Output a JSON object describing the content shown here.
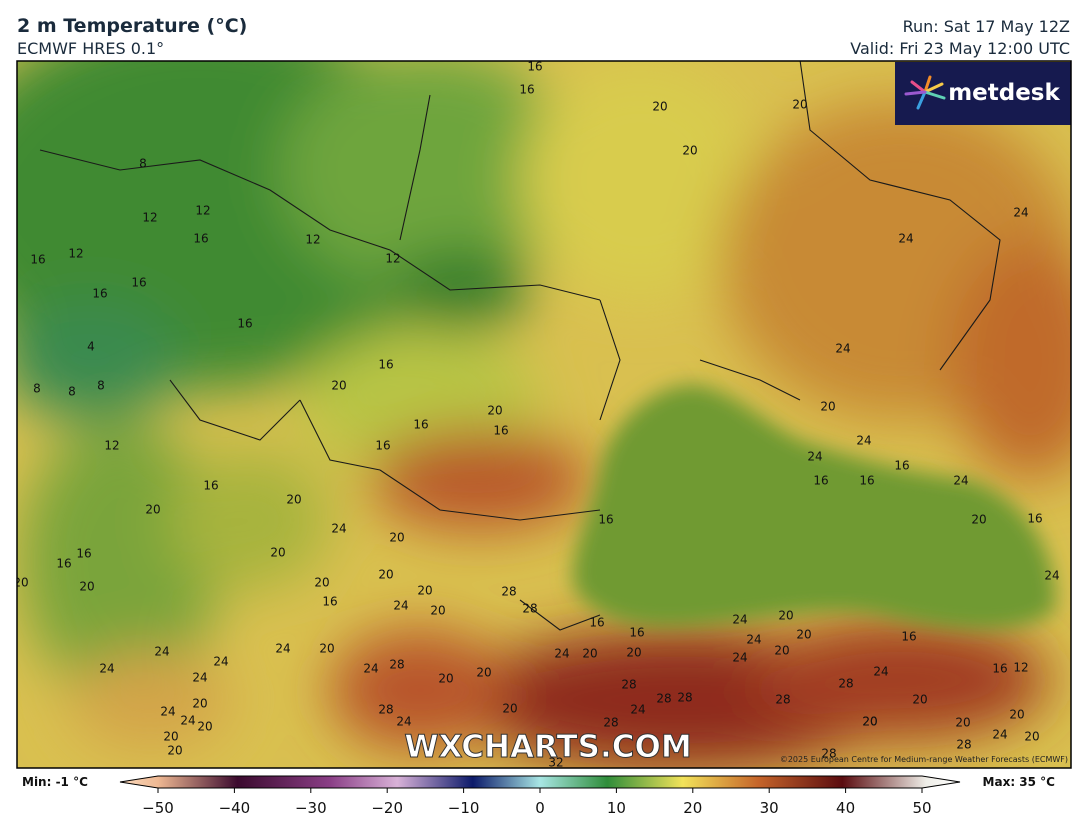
{
  "header": {
    "title": "2 m Temperature (°C)",
    "subtitle": "ECMWF HRES 0.1°",
    "run": "Run: Sat 17 May 12Z",
    "valid": "Valid: Fri 23 May 12:00 UTC"
  },
  "map": {
    "logo": "metdesk",
    "watermark": "WXCHARTS.COM",
    "copyright": "©2025 European Centre for Medium-range Weather Forecasts (ECMWF)",
    "contour_labels": [
      16,
      16,
      20,
      20,
      20,
      8,
      12,
      12,
      16,
      12,
      16,
      12,
      12,
      24,
      24,
      16,
      16,
      16,
      4,
      24,
      16,
      20,
      8,
      8,
      8,
      20,
      20,
      16,
      16,
      16,
      24,
      12,
      24,
      16,
      16,
      16,
      24,
      16,
      20,
      20,
      24,
      16,
      20,
      16,
      20,
      16,
      16,
      24,
      20,
      20,
      20,
      20,
      20,
      28,
      20,
      28,
      16,
      24,
      20,
      20,
      16,
      16,
      24,
      20,
      24,
      16,
      24,
      20,
      24,
      24,
      20,
      24,
      20,
      24,
      20,
      20,
      24,
      28,
      24,
      20,
      16,
      12,
      24,
      24,
      20,
      28,
      28,
      28,
      28,
      20,
      28,
      20,
      24,
      28,
      20,
      24,
      20,
      24,
      20,
      28,
      20,
      20,
      20,
      24,
      20,
      20,
      28,
      24,
      28,
      32
    ]
  },
  "colorbar": {
    "min_label": "Min: -1 °C",
    "max_label": "Max: 35 °C",
    "range": [
      -50,
      50
    ],
    "ticks": [
      {
        "value": -50,
        "label": "−50"
      },
      {
        "value": -40,
        "label": "−40"
      },
      {
        "value": -30,
        "label": "−30"
      },
      {
        "value": -20,
        "label": "−20"
      },
      {
        "value": -10,
        "label": "−10"
      },
      0,
      10,
      20,
      30,
      40,
      50
    ]
  }
}
